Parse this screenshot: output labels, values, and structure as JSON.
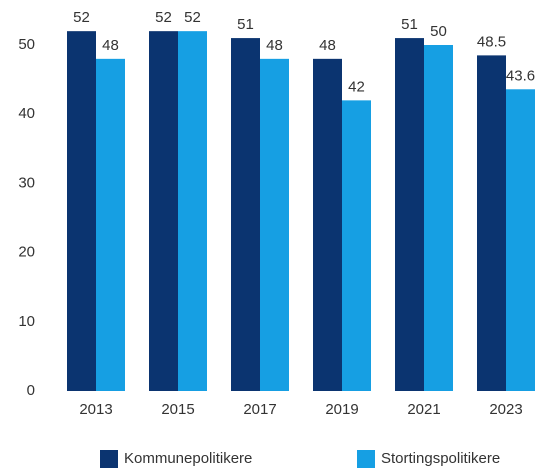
{
  "chart_data": {
    "type": "bar",
    "categories": [
      "2013",
      "2015",
      "2017",
      "2019",
      "2021",
      "2023"
    ],
    "series": [
      {
        "name": "Kommunepolitikere",
        "color": "#0b3470",
        "values": [
          52,
          52,
          51,
          48,
          51,
          48.5
        ]
      },
      {
        "name": "Stortingspolitikere",
        "color": "#169fe3",
        "values": [
          48,
          52,
          48,
          42,
          50,
          43.6
        ]
      }
    ],
    "ylim": [
      0,
      55
    ],
    "yticks": [
      0,
      10,
      20,
      30,
      40,
      50
    ],
    "grid": false,
    "legend": "bottom"
  }
}
